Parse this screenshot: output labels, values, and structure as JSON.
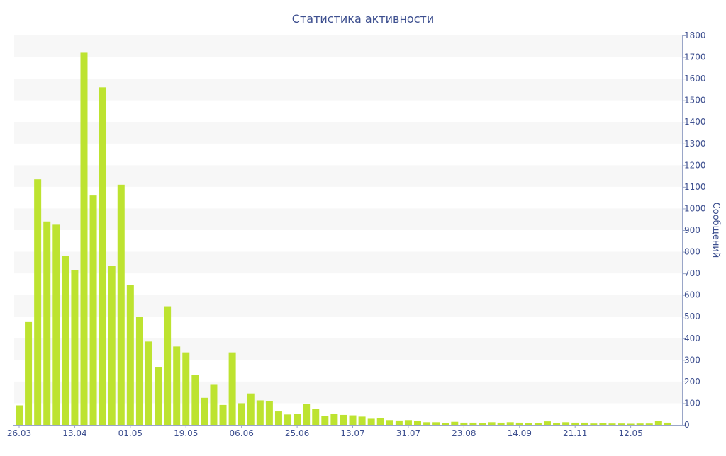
{
  "chart_data": {
    "type": "bar",
    "title": "Статистика активности",
    "ylabel": "Сообщений",
    "ylim": [
      0,
      1800
    ],
    "yticks": [
      0,
      100,
      200,
      300,
      400,
      500,
      600,
      700,
      800,
      900,
      1000,
      1100,
      1200,
      1300,
      1400,
      1500,
      1600,
      1700,
      1800
    ],
    "y_axis_side": "right",
    "grid": "alternating horizontal bands",
    "legend": "none",
    "x_tick_labels": [
      {
        "label": "26.03",
        "index": 0
      },
      {
        "label": "13.04",
        "index": 6
      },
      {
        "label": "01.05",
        "index": 12
      },
      {
        "label": "19.05",
        "index": 18
      },
      {
        "label": "06.06",
        "index": 24
      },
      {
        "label": "25.06",
        "index": 30
      },
      {
        "label": "13.07",
        "index": 36
      },
      {
        "label": "31.07",
        "index": 42
      },
      {
        "label": "23.08",
        "index": 48
      },
      {
        "label": "14.09",
        "index": 54
      },
      {
        "label": "21.11",
        "index": 60
      },
      {
        "label": "12.05",
        "index": 66
      }
    ],
    "bar_color": "#bde330",
    "text_color": "#3d4f8f",
    "band_color": "#f7f7f7",
    "values": [
      90,
      475,
      1135,
      940,
      925,
      780,
      715,
      1720,
      1060,
      1560,
      735,
      1110,
      645,
      500,
      385,
      265,
      548,
      362,
      335,
      230,
      125,
      185,
      92,
      335,
      100,
      145,
      113,
      110,
      62,
      48,
      50,
      95,
      72,
      42,
      50,
      46,
      44,
      38,
      28,
      32,
      22,
      20,
      22,
      18,
      12,
      12,
      8,
      14,
      10,
      10,
      8,
      12,
      10,
      12,
      10,
      8,
      8,
      16,
      8,
      12,
      10,
      10,
      6,
      8,
      6,
      6,
      5,
      6,
      6,
      18,
      10
    ]
  }
}
